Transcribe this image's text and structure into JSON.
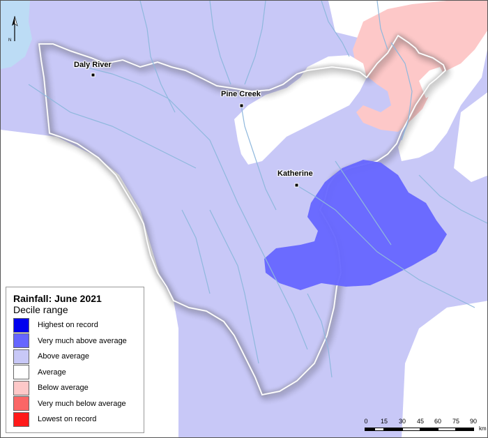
{
  "legend": {
    "title": "Rainfall: June 2021",
    "subtitle": "Decile range",
    "items": [
      {
        "label": "Highest on record",
        "color": "#0000ee"
      },
      {
        "label": "Very much above average",
        "color": "#6666ff"
      },
      {
        "label": "Above average",
        "color": "#c8c8f7"
      },
      {
        "label": "Average",
        "color": "#ffffff"
      },
      {
        "label": "Below average",
        "color": "#fdc8c8"
      },
      {
        "label": "Very much below average",
        "color": "#fb6666"
      },
      {
        "label": "Lowest on record",
        "color": "#ff1a1a"
      }
    ]
  },
  "places": [
    {
      "name": "Daly River"
    },
    {
      "name": "Pine Creek"
    },
    {
      "name": "Katherine"
    }
  ],
  "north_arrow": {
    "label": "N"
  },
  "scale_bar": {
    "ticks": [
      "0",
      "15",
      "30",
      "45",
      "60",
      "75",
      "90"
    ],
    "unit": "km"
  },
  "colors": {
    "water": "#bcdcf5",
    "river": "#8fb8dd",
    "above_average": "#c8c8f7",
    "very_much_above_average": "#6666ff",
    "below_average": "#fdc8c8",
    "average": "#ffffff"
  }
}
